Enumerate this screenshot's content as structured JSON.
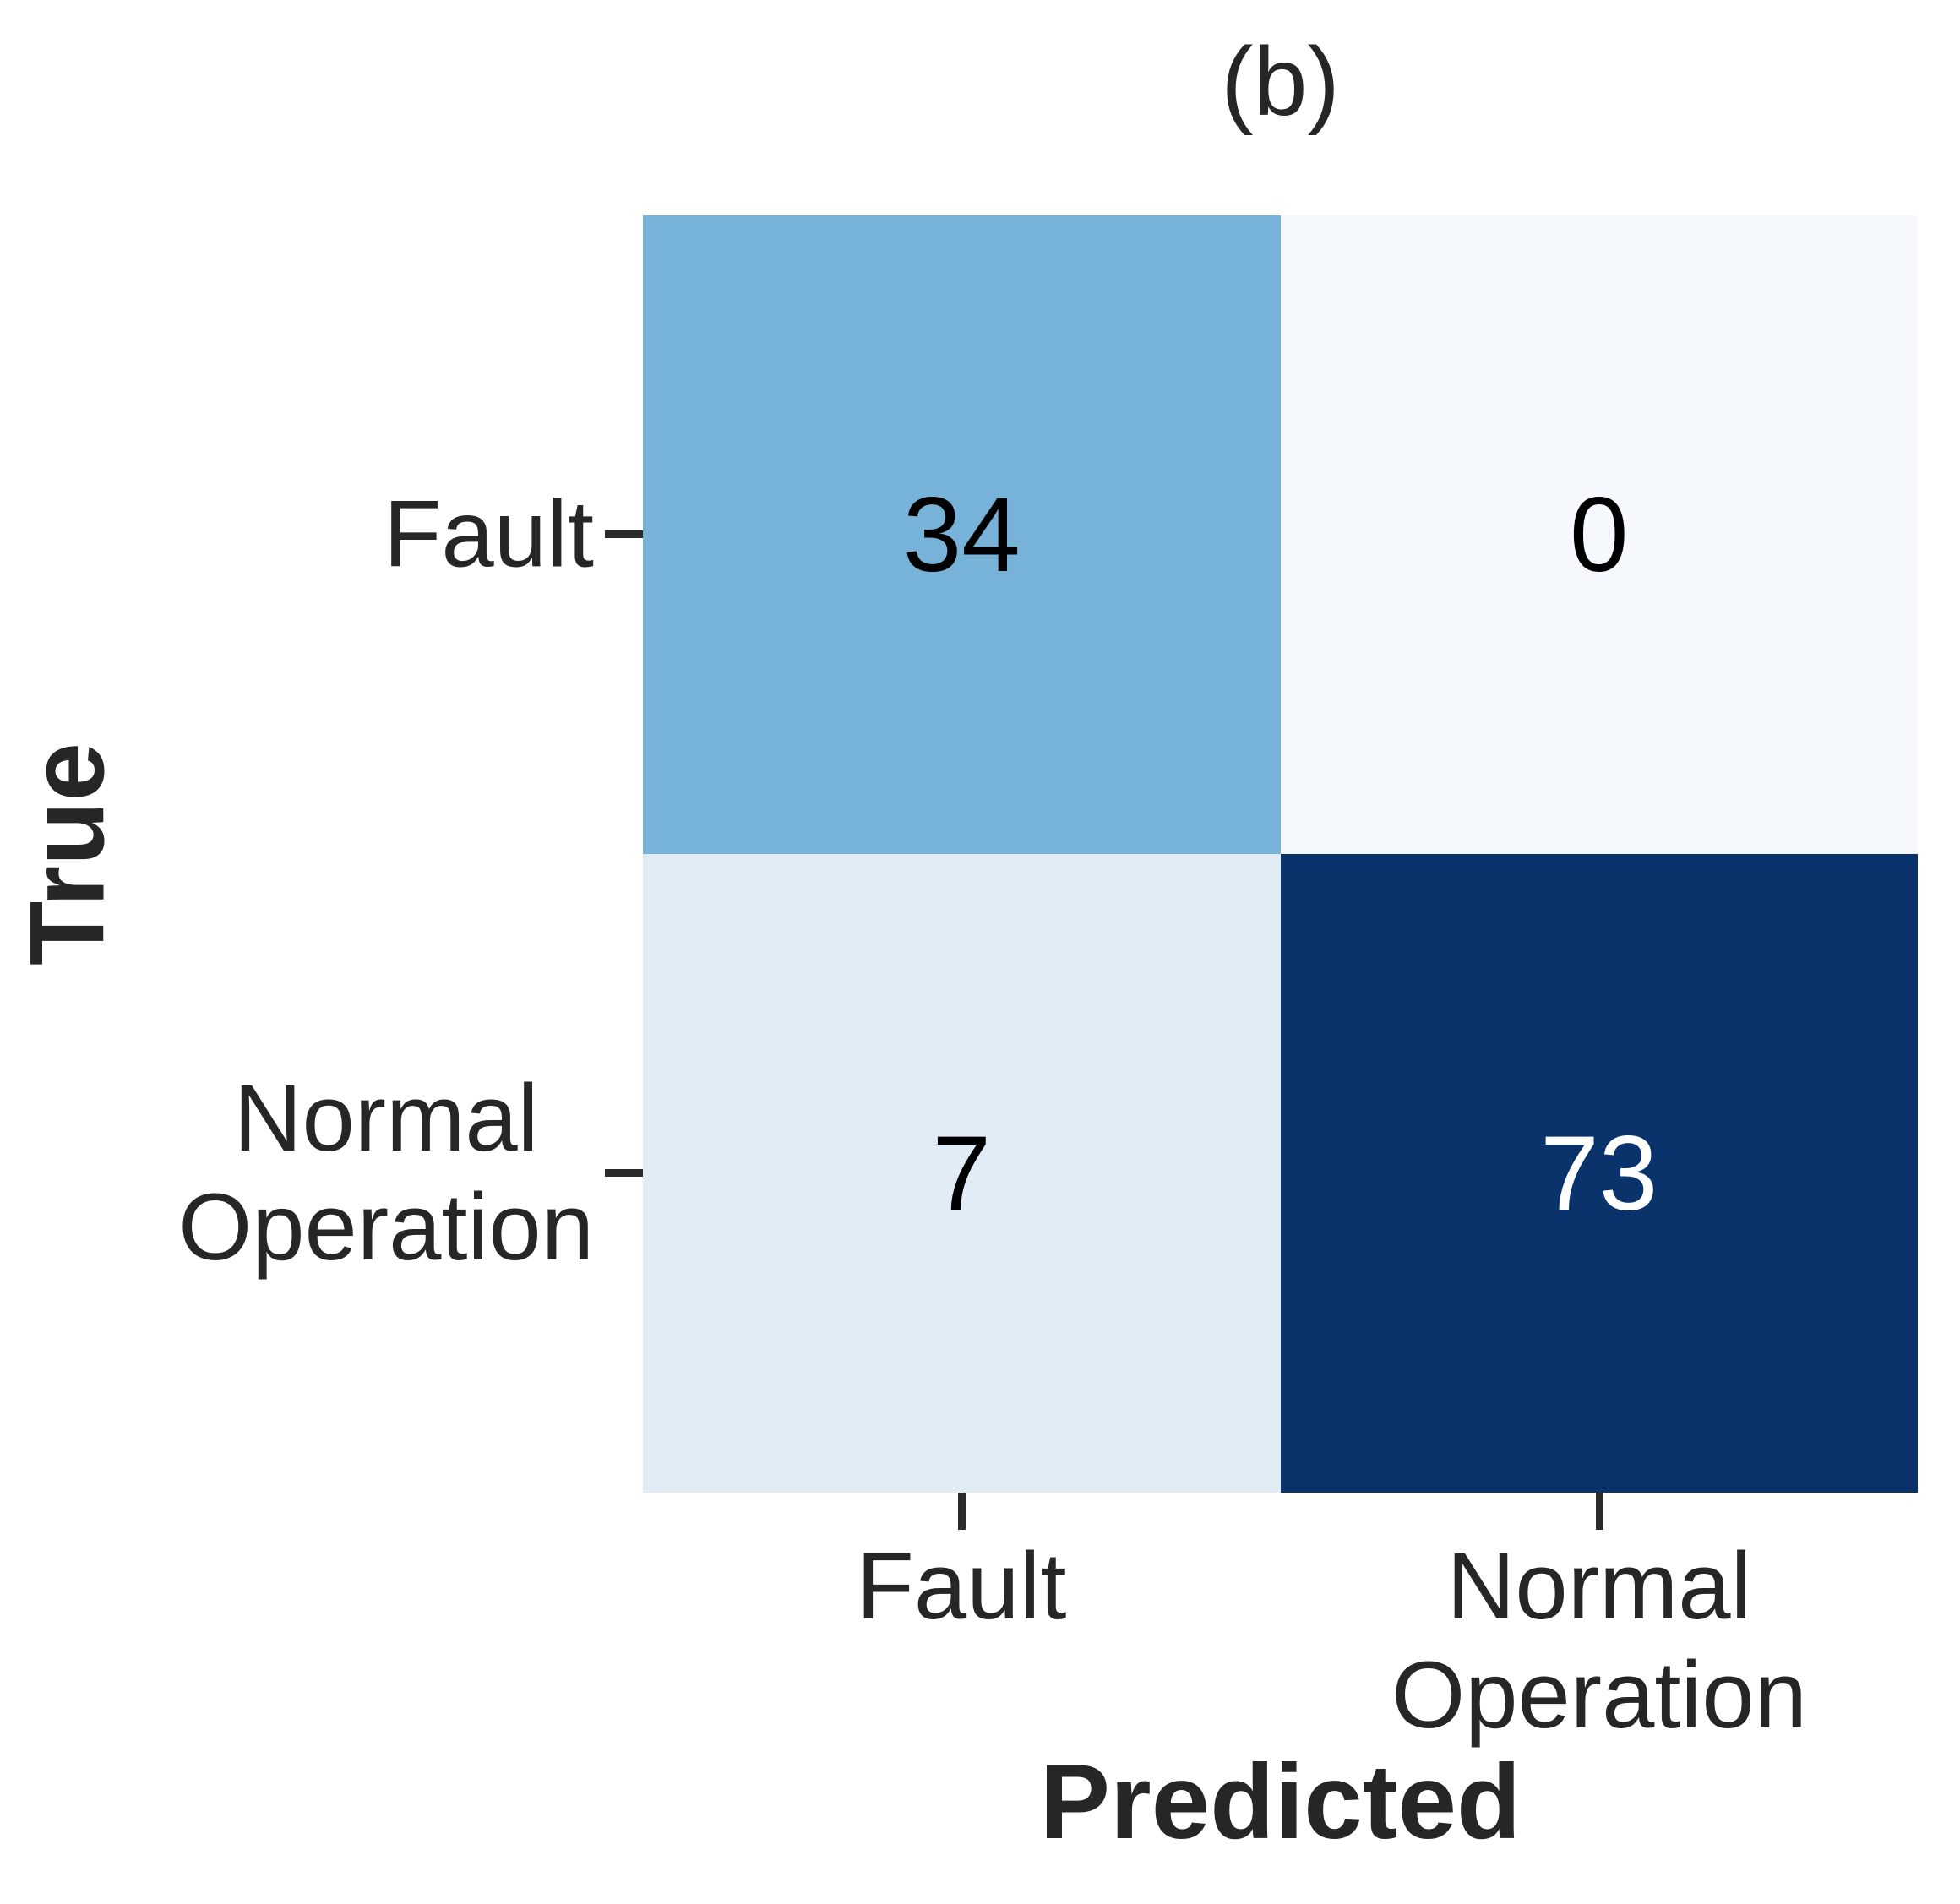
{
  "chart_data": {
    "type": "heatmap",
    "title": "(b)",
    "xlabel": "Predicted",
    "ylabel": "True",
    "x_categories": [
      "Fault",
      "Normal\nOperation"
    ],
    "y_categories": [
      "Fault",
      "Normal\nOperation"
    ],
    "values": [
      [
        34,
        0
      ],
      [
        7,
        73
      ]
    ],
    "vmin": 0,
    "vmax": 73,
    "colormap": "Blues",
    "legend_position": "none",
    "grid": false,
    "cell_colors": [
      [
        "#77b3d8",
        "#f5f9fd"
      ],
      [
        "#e2ecf6",
        "#0a326b"
      ]
    ],
    "annot_colors": [
      [
        "#000000",
        "#000000"
      ],
      [
        "#000000",
        "#ffffff"
      ]
    ],
    "text_color": "#262626"
  }
}
